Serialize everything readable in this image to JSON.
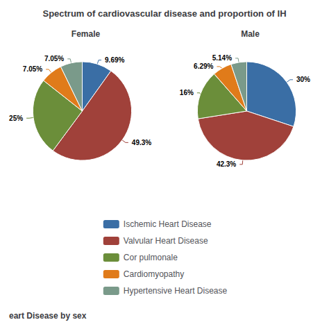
{
  "title": "Spectrum of cardiovascular disease and proportion of IH",
  "subtitle": "eart Disease by sex",
  "legend": "bottom",
  "chart_data": [
    {
      "type": "pie",
      "title": "Female",
      "categories": [
        "Ischemic Heart Disease",
        "Valvular Heart Disease",
        "Cor pulmonale",
        "Cardiomyopathy",
        "Hypertensive Heart Disease"
      ],
      "values": [
        9.69,
        49.3,
        25,
        7.05,
        7.05
      ],
      "value_labels": [
        "9.69%",
        "49.3%",
        "25%",
        "7.05%",
        "7.05%"
      ],
      "colors": [
        "#3a6ea5",
        "#a0413a",
        "#6b8e3a",
        "#e07b1a",
        "#7a9a8a"
      ],
      "data_labels": true
    },
    {
      "type": "pie",
      "title": "Male",
      "categories": [
        "Ischemic Heart Disease",
        "Valvular Heart Disease",
        "Cor pulmonale",
        "Cardiomyopathy",
        "Hypertensive Heart Disease"
      ],
      "values": [
        30,
        42.3,
        16,
        6.29,
        5.14
      ],
      "value_labels": [
        "30%",
        "42.3%",
        "16%",
        "6.29%",
        "5.14%"
      ],
      "colors": [
        "#3a6ea5",
        "#a0413a",
        "#6b8e3a",
        "#e07b1a",
        "#7a9a8a"
      ],
      "data_labels": true
    }
  ]
}
